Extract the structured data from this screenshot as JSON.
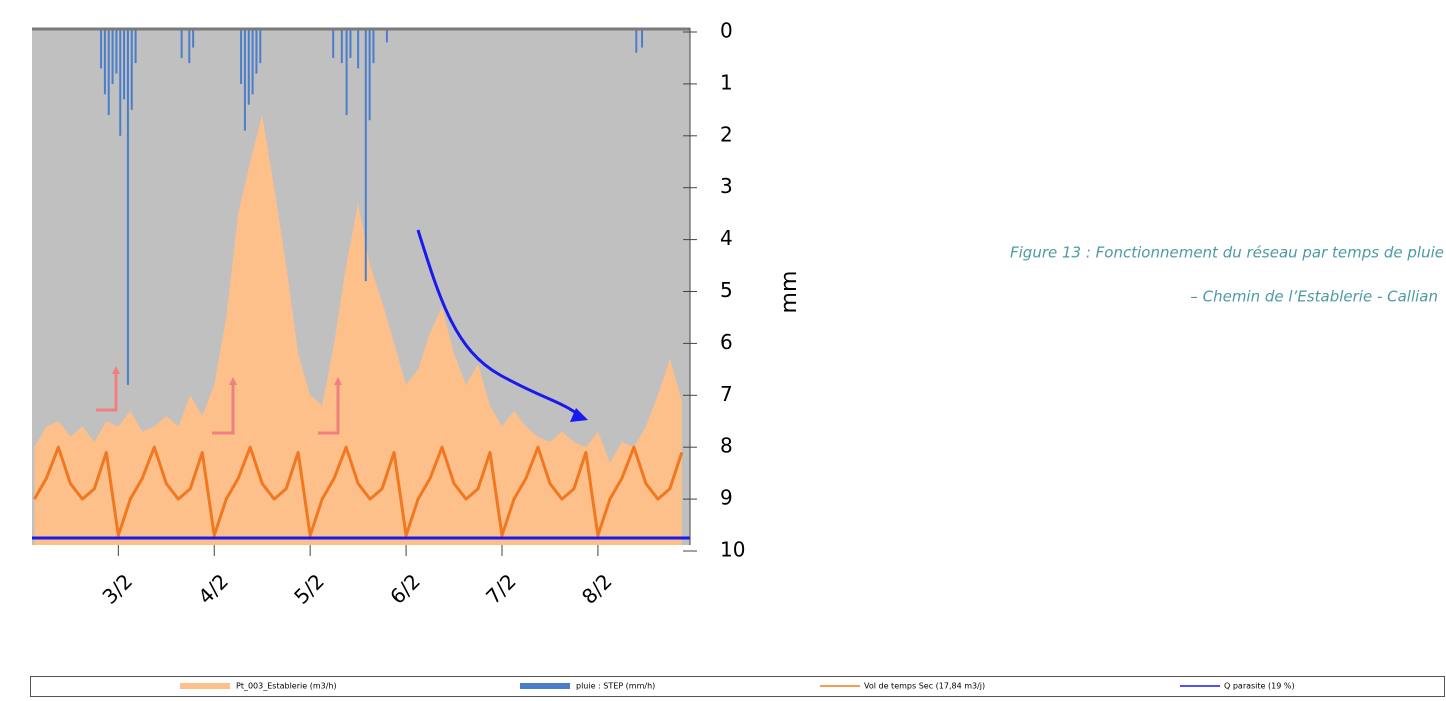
{
  "chart_data": {
    "type": "area",
    "y_label": "mm",
    "caption": [
      "Figure 13 : Fonctionnement du réseau par temps de pluie",
      "– Chemin de l’Establerie - Callian"
    ],
    "xlim": [
      2.1,
      8.96
    ],
    "xticks": [
      {
        "value": 3,
        "label": "3/2"
      },
      {
        "value": 4,
        "label": "4/2"
      },
      {
        "value": 5,
        "label": "5/2"
      },
      {
        "value": 6,
        "label": "6/2"
      },
      {
        "value": 7,
        "label": "7/2"
      },
      {
        "value": 8,
        "label": "8/2"
      }
    ],
    "ylim": [
      0,
      10
    ],
    "yticks": [
      0,
      1,
      2,
      3,
      4,
      5,
      6,
      7,
      8,
      9,
      10
    ],
    "y_inverted": true,
    "x": [
      2.125,
      2.25,
      2.375,
      2.5,
      2.625,
      2.75,
      2.875,
      3.0,
      3.125,
      3.25,
      3.375,
      3.5,
      3.625,
      3.75,
      3.875,
      4.0,
      4.125,
      4.25,
      4.375,
      4.5,
      4.625,
      4.75,
      4.875,
      5.0,
      5.125,
      5.25,
      5.375,
      5.5,
      5.625,
      5.75,
      5.875,
      6.0,
      6.125,
      6.25,
      6.375,
      6.5,
      6.625,
      6.75,
      6.875,
      7.0,
      7.125,
      7.25,
      7.375,
      7.5,
      7.625,
      7.75,
      7.875,
      8.0,
      8.125,
      8.25,
      8.375,
      8.5,
      8.625,
      8.75,
      8.875
    ],
    "series": [
      {
        "name": "Pt_003_Establerie (m3/h)",
        "kind": "area",
        "color": "#fdc08a",
        "values": [
          8.0,
          7.6,
          7.5,
          7.8,
          7.6,
          7.9,
          7.5,
          7.6,
          7.3,
          7.7,
          7.6,
          7.4,
          7.6,
          7.0,
          7.4,
          6.8,
          5.5,
          3.5,
          2.5,
          1.6,
          3.0,
          4.5,
          6.2,
          7.0,
          7.2,
          6.0,
          4.5,
          3.3,
          4.5,
          5.2,
          6.0,
          6.8,
          6.5,
          5.8,
          5.3,
          6.2,
          6.8,
          6.4,
          7.2,
          7.6,
          7.3,
          7.6,
          7.8,
          7.9,
          7.7,
          7.9,
          8.0,
          7.7,
          8.3,
          7.9,
          8.0,
          7.6,
          7.0,
          6.3,
          7.1
        ]
      },
      {
        "name": "pluie : STEP (mm/h)",
        "kind": "bar",
        "color": "#4a7ecb",
        "x": [
          2.82,
          2.86,
          2.9,
          2.94,
          2.98,
          3.02,
          3.06,
          3.1,
          3.14,
          3.18,
          3.66,
          3.74,
          3.78,
          4.28,
          4.32,
          4.36,
          4.4,
          4.44,
          4.48,
          5.24,
          5.33,
          5.38,
          5.42,
          5.5,
          5.58,
          5.62,
          5.66,
          5.8,
          8.4,
          8.46
        ],
        "values": [
          0.7,
          1.2,
          1.6,
          1.0,
          0.8,
          2.0,
          1.3,
          6.8,
          1.5,
          0.6,
          0.5,
          0.6,
          0.3,
          1.0,
          1.9,
          1.4,
          1.2,
          0.8,
          0.6,
          0.5,
          0.6,
          1.6,
          0.5,
          0.7,
          4.8,
          1.7,
          0.6,
          0.2,
          0.4,
          0.3
        ]
      },
      {
        "name": "Vol de temps Sec (17,84 m3/j)",
        "kind": "line",
        "color": "#f07820",
        "values": [
          9.0,
          8.6,
          8.0,
          8.7,
          9.0,
          8.8,
          8.1,
          9.7,
          9.0,
          8.6,
          8.0,
          8.7,
          9.0,
          8.8,
          8.1,
          9.7,
          9.0,
          8.6,
          8.0,
          8.7,
          9.0,
          8.8,
          8.1,
          9.7,
          9.0,
          8.6,
          8.0,
          8.7,
          9.0,
          8.8,
          8.1,
          9.7,
          9.0,
          8.6,
          8.0,
          8.7,
          9.0,
          8.8,
          8.1,
          9.7,
          9.0,
          8.6,
          8.0,
          8.7,
          9.0,
          8.8,
          8.1,
          9.7,
          9.0,
          8.6,
          8.0,
          8.7,
          9.0,
          8.8,
          8.1
        ]
      },
      {
        "name": "Q parasite (19 %)",
        "kind": "line",
        "color": "#1a1aee",
        "x": [
          2.1,
          8.96
        ],
        "values": [
          9.75,
          9.75
        ]
      }
    ]
  }
}
